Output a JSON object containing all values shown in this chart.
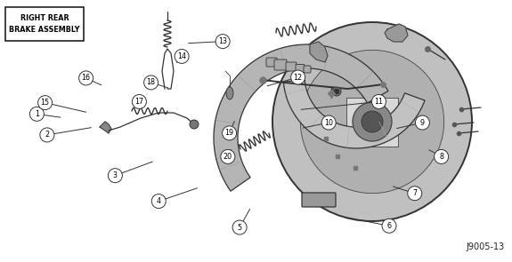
{
  "label_box_text": "RIGHT REAR\nBRAKE ASSEMBLY",
  "part_ref": "J9005-13",
  "background_color": "#ffffff",
  "dark": "#333333",
  "gray_dark": "#555555",
  "gray_med": "#888888",
  "gray_light": "#bbbbbb",
  "gray_fill": "#aaaaaa",
  "figsize": [
    5.75,
    2.95
  ],
  "dpi": 100,
  "parts": [
    [
      1,
      0.072,
      0.435,
      0.118,
      0.448
    ],
    [
      2,
      0.092,
      0.515,
      0.178,
      0.487
    ],
    [
      3,
      0.225,
      0.67,
      0.298,
      0.617
    ],
    [
      4,
      0.31,
      0.768,
      0.385,
      0.718
    ],
    [
      5,
      0.468,
      0.868,
      0.488,
      0.798
    ],
    [
      6,
      0.76,
      0.862,
      0.672,
      0.828
    ],
    [
      7,
      0.81,
      0.738,
      0.768,
      0.712
    ],
    [
      8,
      0.862,
      0.598,
      0.838,
      0.572
    ],
    [
      9,
      0.825,
      0.468,
      0.775,
      0.49
    ],
    [
      10,
      0.642,
      0.468,
      0.592,
      0.488
    ],
    [
      11,
      0.74,
      0.388,
      0.588,
      0.418
    ],
    [
      12,
      0.582,
      0.295,
      0.522,
      0.328
    ],
    [
      13,
      0.435,
      0.158,
      0.368,
      0.165
    ],
    [
      14,
      0.355,
      0.215,
      0.345,
      0.238
    ],
    [
      15,
      0.088,
      0.392,
      0.168,
      0.428
    ],
    [
      16,
      0.168,
      0.298,
      0.198,
      0.325
    ],
    [
      17,
      0.272,
      0.388,
      0.262,
      0.408
    ],
    [
      18,
      0.295,
      0.315,
      0.328,
      0.335
    ],
    [
      19,
      0.448,
      0.508,
      0.458,
      0.462
    ],
    [
      20,
      0.445,
      0.598,
      0.452,
      0.572
    ]
  ]
}
